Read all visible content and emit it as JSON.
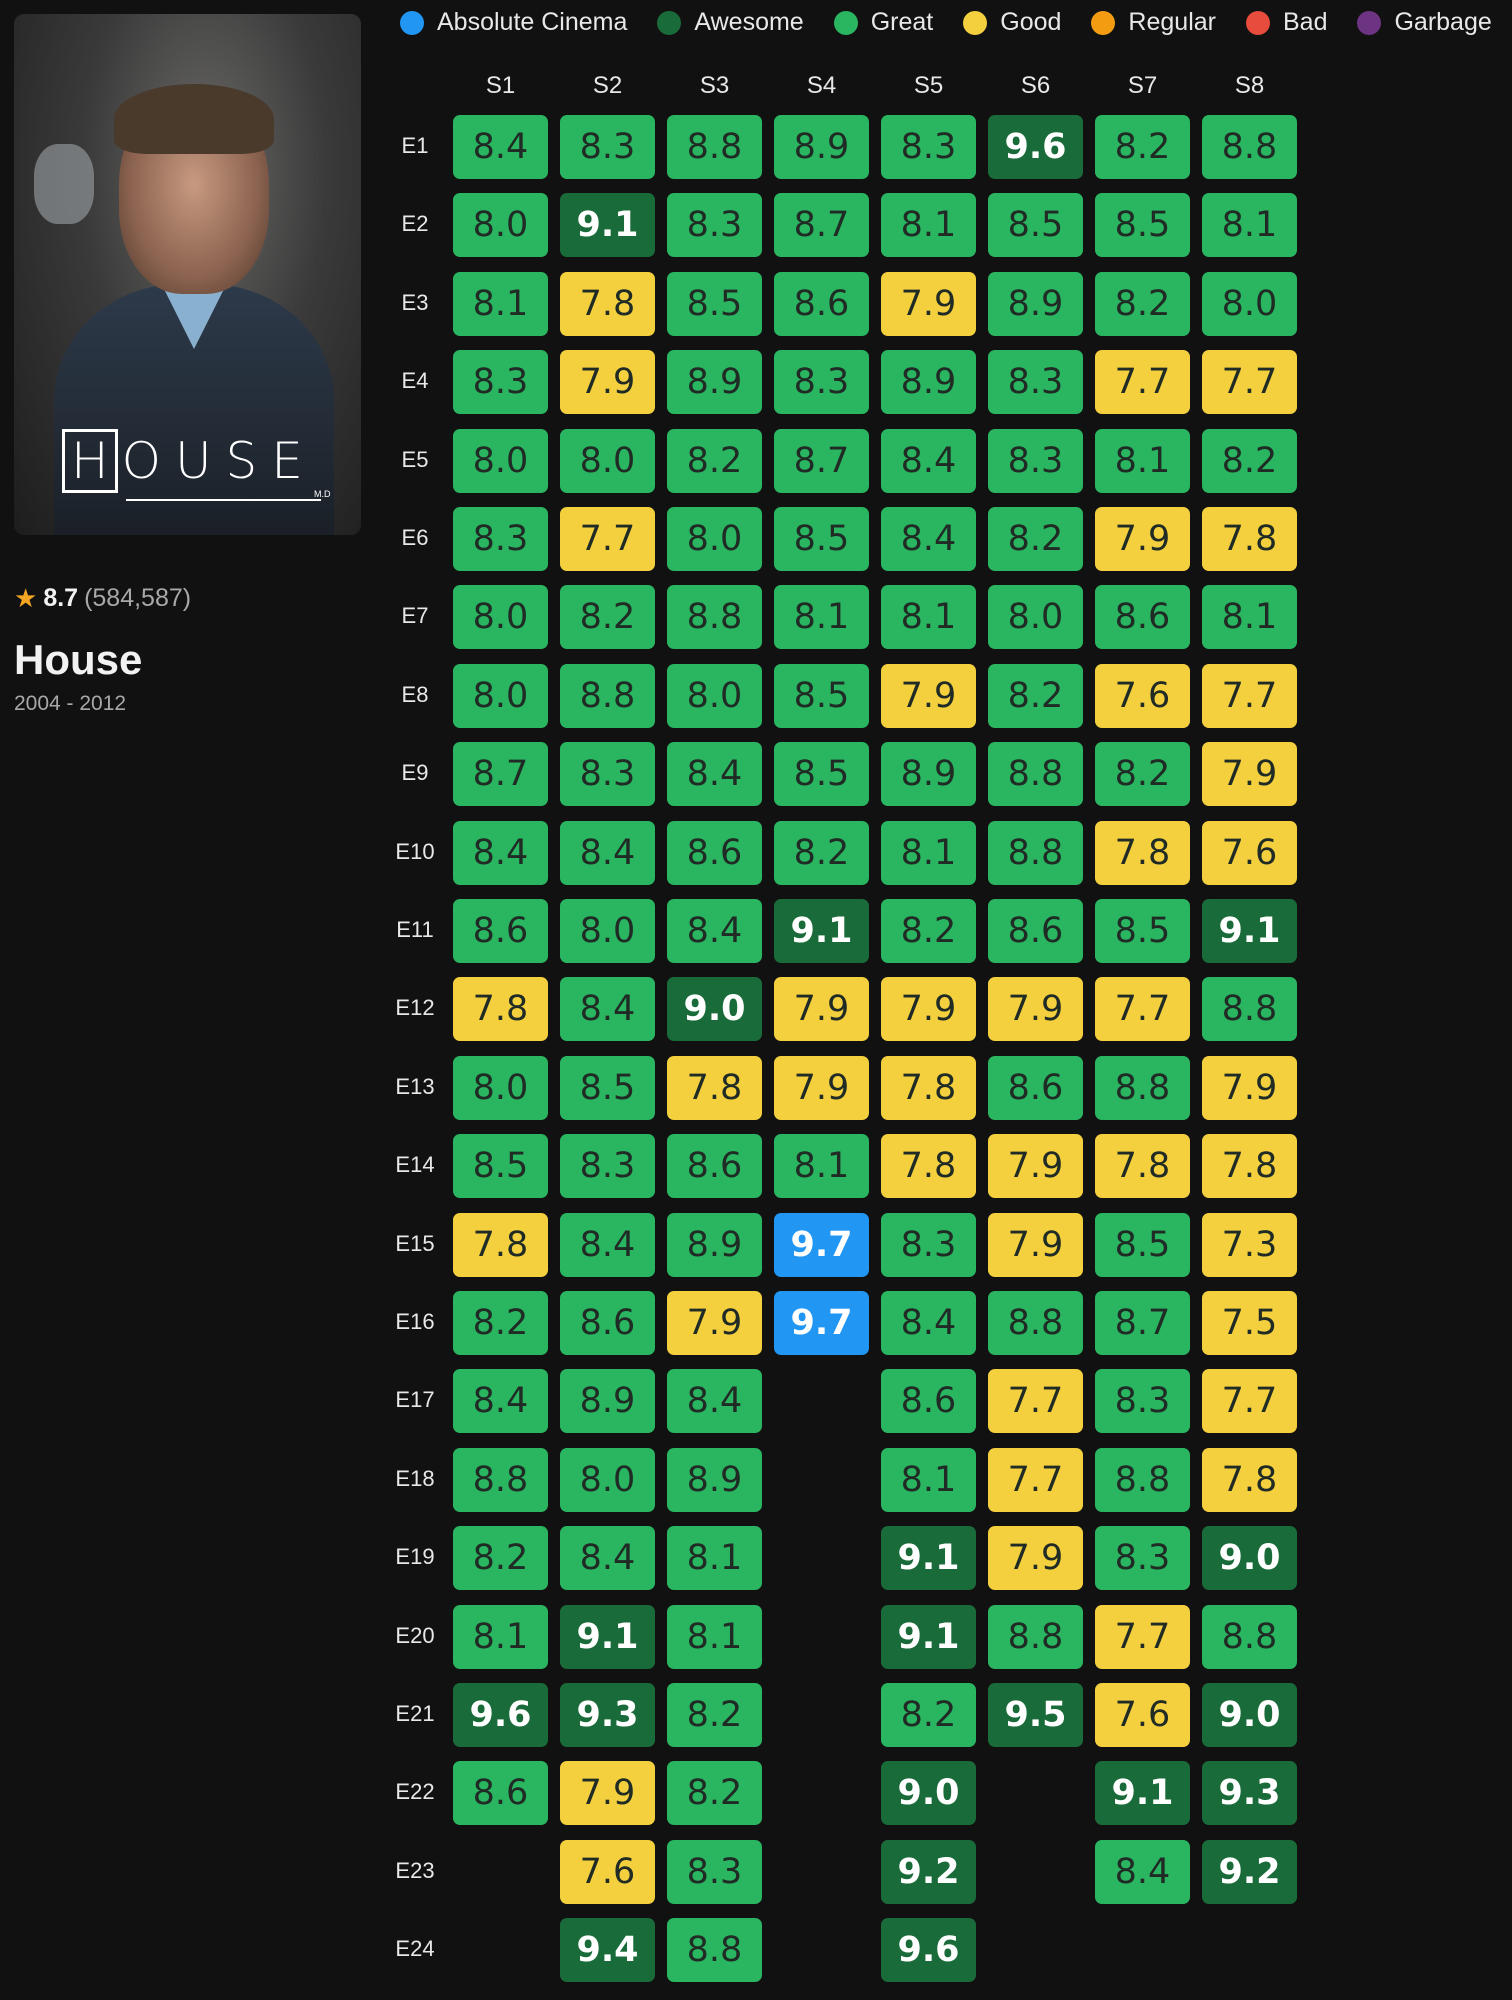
{
  "legend": [
    {
      "label": "Absolute Cinema",
      "color": "#2196f3"
    },
    {
      "label": "Awesome",
      "color": "#1a6b3a"
    },
    {
      "label": "Great",
      "color": "#2ab561"
    },
    {
      "label": "Good",
      "color": "#f4d03f"
    },
    {
      "label": "Regular",
      "color": "#f39c12"
    },
    {
      "label": "Bad",
      "color": "#e74c3c"
    },
    {
      "label": "Garbage",
      "color": "#6c3483"
    }
  ],
  "show": {
    "poster_logo": "HOUSE M.D",
    "rating": "8.7",
    "votes": "(584,587)",
    "title": "House",
    "years": "2004 - 2012"
  },
  "seasons": [
    "S1",
    "S2",
    "S3",
    "S4",
    "S5",
    "S6",
    "S7",
    "S8"
  ],
  "episodes": [
    "E1",
    "E2",
    "E3",
    "E4",
    "E5",
    "E6",
    "E7",
    "E8",
    "E9",
    "E10",
    "E11",
    "E12",
    "E13",
    "E14",
    "E15",
    "E16",
    "E17",
    "E18",
    "E19",
    "E20",
    "E21",
    "E22",
    "E23",
    "E24"
  ],
  "ratings": [
    [
      "8.4",
      "8.0",
      "8.1",
      "8.3",
      "8.0",
      "8.3",
      "8.0",
      "8.0",
      "8.7",
      "8.4",
      "8.6",
      "7.8",
      "8.0",
      "8.5",
      "7.8",
      "8.2",
      "8.4",
      "8.8",
      "8.2",
      "8.1",
      "9.6",
      "8.6"
    ],
    [
      "8.3",
      "9.1",
      "7.8",
      "7.9",
      "8.0",
      "7.7",
      "8.2",
      "8.8",
      "8.3",
      "8.4",
      "8.0",
      "8.4",
      "8.5",
      "8.3",
      "8.4",
      "8.6",
      "8.9",
      "8.0",
      "8.4",
      "9.1",
      "9.3",
      "7.9",
      "7.6",
      "9.4"
    ],
    [
      "8.8",
      "8.3",
      "8.5",
      "8.9",
      "8.2",
      "8.0",
      "8.8",
      "8.0",
      "8.4",
      "8.6",
      "8.4",
      "9.0",
      "7.8",
      "8.6",
      "8.9",
      "7.9",
      "8.4",
      "8.9",
      "8.1",
      "8.1",
      "8.2",
      "8.2",
      "8.3",
      "8.8"
    ],
    [
      "8.9",
      "8.7",
      "8.6",
      "8.3",
      "8.7",
      "8.5",
      "8.1",
      "8.5",
      "8.5",
      "8.2",
      "9.1",
      "7.9",
      "7.9",
      "8.1",
      "9.7",
      "9.7"
    ],
    [
      "8.3",
      "8.1",
      "7.9",
      "8.9",
      "8.4",
      "8.4",
      "8.1",
      "7.9",
      "8.9",
      "8.1",
      "8.2",
      "7.9",
      "7.8",
      "7.8",
      "8.3",
      "8.4",
      "8.6",
      "8.1",
      "9.1",
      "9.1",
      "8.2",
      "9.0",
      "9.2",
      "9.6"
    ],
    [
      "9.6",
      "8.5",
      "8.9",
      "8.3",
      "8.3",
      "8.2",
      "8.0",
      "8.2",
      "8.8",
      "8.8",
      "8.6",
      "7.9",
      "8.6",
      "7.9",
      "7.9",
      "8.8",
      "7.7",
      "7.7",
      "7.9",
      "8.8",
      "9.5"
    ],
    [
      "8.2",
      "8.5",
      "8.2",
      "7.7",
      "8.1",
      "7.9",
      "8.6",
      "7.6",
      "8.2",
      "7.8",
      "8.5",
      "7.7",
      "8.8",
      "7.8",
      "8.5",
      "8.7",
      "8.3",
      "8.8",
      "8.3",
      "7.7",
      "7.6",
      "9.1",
      "8.4"
    ],
    [
      "8.8",
      "8.1",
      "8.0",
      "7.7",
      "8.2",
      "7.8",
      "8.1",
      "7.7",
      "7.9",
      "7.6",
      "9.1",
      "8.8",
      "7.9",
      "7.8",
      "7.3",
      "7.5",
      "7.7",
      "7.8",
      "9.0",
      "8.8",
      "9.0",
      "9.3",
      "9.2"
    ]
  ]
}
